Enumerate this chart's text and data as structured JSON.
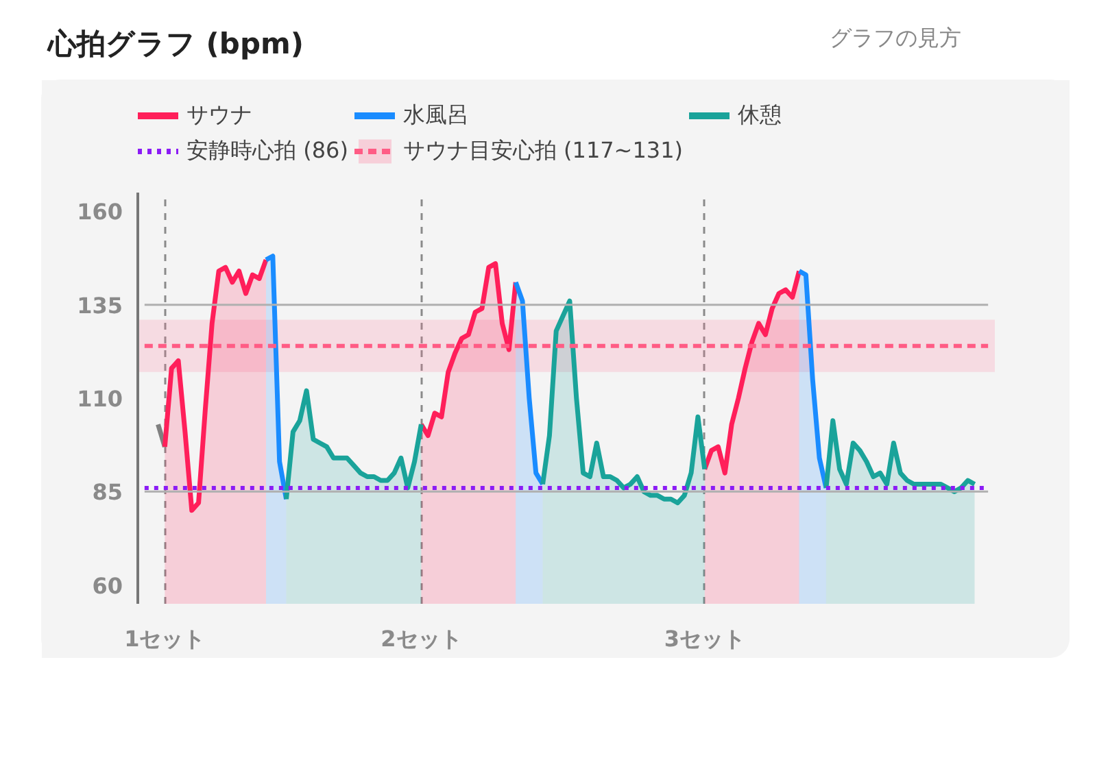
{
  "chart_data": {
    "type": "area",
    "title": "心拍グラフ (bpm)",
    "annotations": [
      "グラフの見方"
    ],
    "categories": [
      null,
      "1セット",
      null,
      null,
      null,
      null,
      null,
      null,
      null,
      null,
      null,
      null,
      null,
      null,
      null,
      null,
      null,
      null,
      null,
      null,
      null,
      null,
      null,
      null,
      null,
      null,
      null,
      null,
      null,
      null,
      null,
      null,
      null,
      null,
      null,
      null,
      null,
      null,
      null,
      "2セット",
      null,
      null,
      null,
      null,
      null,
      null,
      null,
      null,
      null,
      null,
      null,
      null,
      null,
      null,
      null,
      null,
      null,
      null,
      null,
      null,
      null,
      null,
      null,
      null,
      null,
      null,
      null,
      null,
      null,
      null,
      null,
      null,
      null,
      null,
      null,
      null,
      null,
      null,
      null,
      null,
      null,
      "3セット",
      null,
      null,
      null,
      null,
      null,
      null,
      null,
      null,
      null,
      null,
      null,
      null,
      null,
      null,
      null,
      null,
      null,
      null,
      null,
      null,
      null,
      null,
      null,
      null,
      null,
      null,
      null,
      null,
      null,
      null,
      null,
      null,
      null,
      null,
      null,
      null,
      null,
      null,
      null,
      null
    ],
    "series": [
      {
        "type": "line",
        "color": "#808080",
        "values": [
          103,
          97,
          null,
          null,
          null,
          null,
          null,
          null,
          null,
          null,
          null,
          null,
          null,
          null,
          null,
          null,
          null,
          null,
          null,
          null,
          null,
          null,
          null,
          null,
          null,
          null,
          null,
          null,
          null,
          null,
          null,
          null,
          null,
          null,
          null,
          null,
          null,
          null,
          null,
          null,
          null,
          null,
          null,
          null,
          null,
          null,
          null,
          null,
          null,
          null,
          null,
          null,
          null,
          null,
          null,
          null,
          null,
          null,
          null,
          null,
          null,
          null,
          null,
          null,
          null,
          null,
          null,
          null,
          null,
          null,
          null,
          null,
          null,
          null,
          null,
          null,
          null,
          null,
          null,
          null,
          null,
          null,
          null,
          null,
          null,
          null,
          null,
          null,
          null,
          null,
          null,
          null,
          null,
          null,
          null,
          null,
          null,
          null,
          null,
          null,
          null,
          null,
          null,
          null,
          null,
          null,
          null,
          null,
          null,
          null,
          null,
          null,
          null,
          null,
          null,
          null,
          null,
          null,
          null,
          null,
          null,
          null
        ]
      },
      {
        "name": "サウナ",
        "color": "#ff1f5a",
        "values": [
          null,
          97,
          118,
          120,
          101,
          80,
          82,
          107,
          130,
          144,
          145,
          141,
          144,
          138,
          143,
          142,
          147,
          null,
          null,
          null,
          null,
          null,
          null,
          null,
          null,
          null,
          null,
          null,
          null,
          null,
          null,
          null,
          null,
          null,
          null,
          null,
          null,
          null,
          null,
          103,
          100,
          106,
          105,
          117,
          122,
          126,
          127,
          133,
          134,
          145,
          146,
          130,
          123,
          141,
          null,
          null,
          null,
          null,
          null,
          null,
          null,
          null,
          null,
          null,
          null,
          null,
          null,
          null,
          null,
          null,
          null,
          null,
          null,
          null,
          null,
          null,
          null,
          null,
          null,
          null,
          null,
          91,
          96,
          97,
          90,
          103,
          110,
          118,
          125,
          130,
          127,
          134,
          138,
          139,
          137,
          144,
          null,
          null,
          null,
          null,
          null,
          null,
          null,
          null,
          null,
          null,
          null,
          null,
          null,
          null,
          null,
          null,
          null,
          null,
          null,
          null,
          null,
          null,
          null,
          null,
          null,
          null
        ]
      },
      {
        "name": "水風呂",
        "color": "#1a8cff",
        "values": [
          null,
          null,
          null,
          null,
          null,
          null,
          null,
          null,
          null,
          null,
          null,
          null,
          null,
          null,
          null,
          null,
          147,
          148,
          93,
          83,
          null,
          null,
          null,
          null,
          null,
          null,
          null,
          null,
          null,
          null,
          null,
          null,
          null,
          null,
          null,
          null,
          null,
          null,
          null,
          null,
          null,
          null,
          null,
          null,
          null,
          null,
          null,
          null,
          null,
          null,
          null,
          null,
          null,
          141,
          136,
          110,
          90,
          87,
          null,
          null,
          null,
          null,
          null,
          null,
          null,
          null,
          null,
          null,
          null,
          null,
          null,
          null,
          null,
          null,
          null,
          null,
          null,
          null,
          null,
          null,
          null,
          null,
          null,
          null,
          null,
          null,
          null,
          null,
          null,
          null,
          null,
          null,
          null,
          null,
          null,
          144,
          143,
          115,
          94,
          86,
          null,
          null,
          null,
          null,
          null,
          null,
          null,
          null,
          null,
          null,
          null,
          null,
          null,
          null,
          null,
          null,
          null,
          null,
          null,
          null,
          null,
          null
        ]
      },
      {
        "name": "休憩",
        "color": "#1aa39a",
        "values": [
          null,
          null,
          null,
          null,
          null,
          null,
          null,
          null,
          null,
          null,
          null,
          null,
          null,
          null,
          null,
          null,
          null,
          null,
          null,
          83,
          101,
          104,
          112,
          99,
          98,
          97,
          94,
          94,
          94,
          92,
          90,
          89,
          89,
          88,
          88,
          90,
          94,
          86,
          93,
          103,
          null,
          null,
          null,
          null,
          null,
          null,
          null,
          null,
          null,
          null,
          null,
          null,
          null,
          null,
          null,
          null,
          null,
          87,
          100,
          128,
          132,
          136,
          110,
          90,
          89,
          98,
          89,
          89,
          88,
          86,
          87,
          89,
          85,
          84,
          84,
          83,
          83,
          82,
          84,
          90,
          105,
          91,
          null,
          null,
          null,
          null,
          null,
          null,
          null,
          null,
          null,
          null,
          null,
          null,
          null,
          null,
          null,
          null,
          null,
          86,
          104,
          91,
          87,
          98,
          96,
          93,
          89,
          90,
          87,
          98,
          90,
          88,
          87,
          87,
          87,
          87,
          87,
          86,
          85,
          86,
          88,
          87
        ]
      }
    ],
    "ylim": [
      55,
      165
    ],
    "yticks": [
      60,
      85,
      110,
      135,
      160
    ],
    "grid": "x",
    "legend": "top left",
    "ref_lines": [
      {
        "axis": "y",
        "value": 124,
        "color": "#ff5c85",
        "line_style": "dashed"
      },
      {
        "axis": "y",
        "value": 135,
        "color": "#b0b0b0"
      },
      {
        "axis": "y",
        "value": 85,
        "color": "#b0b0b0"
      },
      {
        "axis": "y",
        "value": 86,
        "label": "安静時心拍 (86)",
        "color": "#8b1cf5",
        "line_style": "dotted"
      }
    ],
    "bands": [
      {
        "axis": "y",
        "from": 117,
        "to": 131,
        "label": "サウナ目安心拍 (117~131)",
        "color": "#ff7a9c"
      }
    ]
  }
}
